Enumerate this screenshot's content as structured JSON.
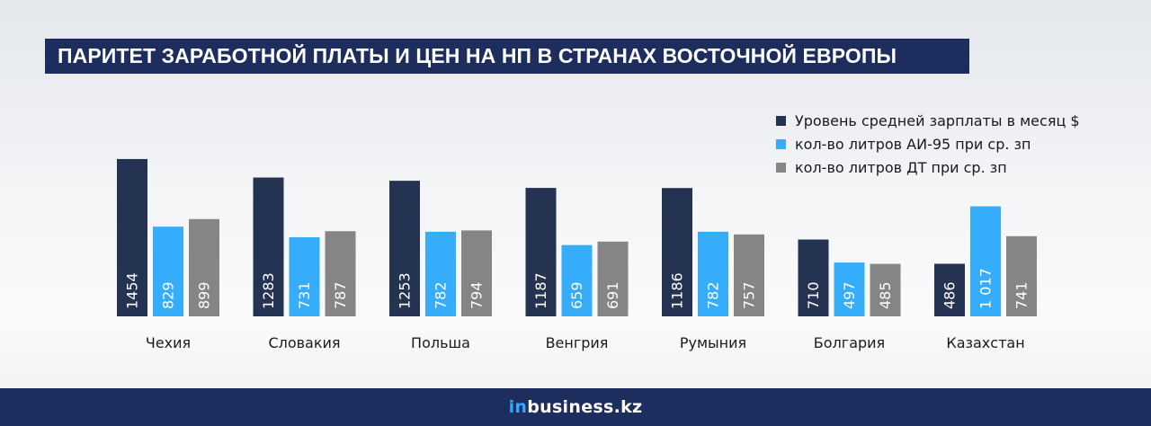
{
  "title": "ПАРИТЕТ ЗАРАБОТНОЙ ПЛАТЫ И ЦЕН НА НП В СТРАНАХ ВОСТОЧНОЙ ЕВРОПЫ",
  "footer": {
    "brand_prefix": "in",
    "brand_rest": "business.kz"
  },
  "colors": {
    "salary": "#253352",
    "ai95": "#35adfb",
    "dt": "#858585",
    "title_bg": "#1c2d5e",
    "footer_bg": "#1c2d5e",
    "brand_accent": "#31a9ff"
  },
  "chart_data": {
    "type": "bar",
    "categories": [
      "Чехия",
      "Словакия",
      "Польша",
      "Венгрия",
      "Румыния",
      "Болгария",
      "Казахстан"
    ],
    "series": [
      {
        "name": "Уровень средней зарплаты в месяц $",
        "values": [
          1454,
          1283,
          1253,
          1187,
          1186,
          710,
          486
        ],
        "labels": [
          "1454",
          "1283",
          "1253",
          "1187",
          "1186",
          "710",
          "486"
        ],
        "color": "#253352"
      },
      {
        "name": "кол-во литров АИ-95 при ср. зп",
        "values": [
          829,
          731,
          782,
          659,
          782,
          497,
          1017
        ],
        "labels": [
          "829",
          "731",
          "782",
          "659",
          "782",
          "497",
          "1 017"
        ],
        "color": "#35adfb"
      },
      {
        "name": "кол-во литров ДТ при ср. зп",
        "values": [
          899,
          787,
          794,
          691,
          757,
          485,
          741
        ],
        "labels": [
          "899",
          "787",
          "794",
          "691",
          "757",
          "485",
          "741"
        ],
        "color": "#858585"
      }
    ],
    "legend_position": "top-right",
    "grid": false,
    "ylim": [
      0,
      1500
    ]
  }
}
